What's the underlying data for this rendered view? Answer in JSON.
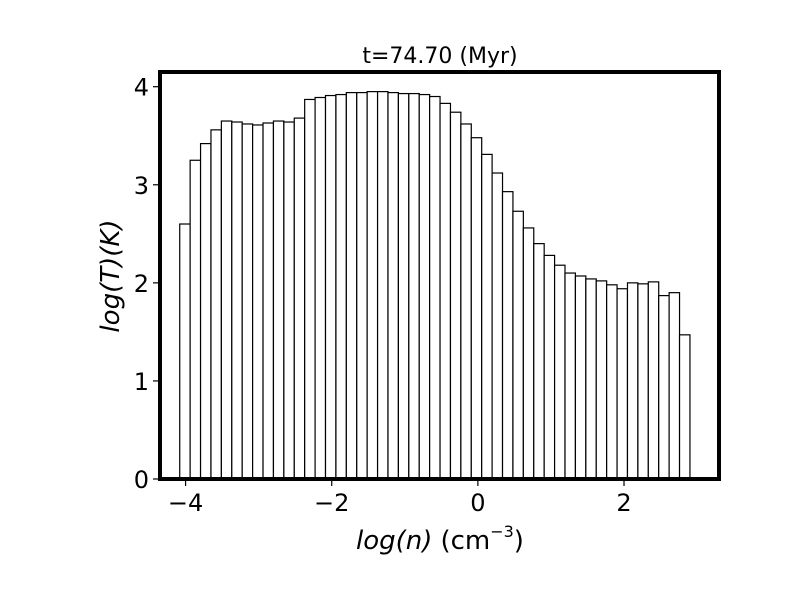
{
  "chart_data": {
    "type": "bar",
    "title": "t=74.70 (Myr)",
    "xlabel": {
      "var": "log(n)",
      "unit_base": "(cm",
      "unit_exp": "−3",
      "unit_close": ")"
    },
    "ylabel": "log(T)(K)",
    "xlim": [
      -4.35,
      3.3
    ],
    "ylim": [
      0,
      4.15
    ],
    "xticks": [
      {
        "value": -4,
        "label": "−4"
      },
      {
        "value": -2,
        "label": "−2"
      },
      {
        "value": 0,
        "label": "0"
      },
      {
        "value": 2,
        "label": "2"
      }
    ],
    "yticks": [
      {
        "value": 0,
        "label": "0"
      },
      {
        "value": 1,
        "label": "1"
      },
      {
        "value": 2,
        "label": "2"
      },
      {
        "value": 3,
        "label": "3"
      },
      {
        "value": 4,
        "label": "4"
      }
    ],
    "bin_start": -4.08,
    "bin_width": 0.1425,
    "values": [
      2.6,
      3.25,
      3.42,
      3.56,
      3.65,
      3.64,
      3.62,
      3.61,
      3.63,
      3.65,
      3.64,
      3.68,
      3.87,
      3.89,
      3.91,
      3.92,
      3.94,
      3.94,
      3.95,
      3.95,
      3.94,
      3.93,
      3.93,
      3.92,
      3.9,
      3.83,
      3.74,
      3.62,
      3.48,
      3.31,
      3.12,
      2.93,
      2.73,
      2.56,
      2.4,
      2.28,
      2.18,
      2.1,
      2.07,
      2.04,
      2.02,
      1.98,
      1.94,
      2.0,
      1.99,
      2.01,
      1.87,
      1.9,
      1.47
    ],
    "bar_fill": "#ffffff",
    "bar_edge": "#000000",
    "grid": false
  }
}
